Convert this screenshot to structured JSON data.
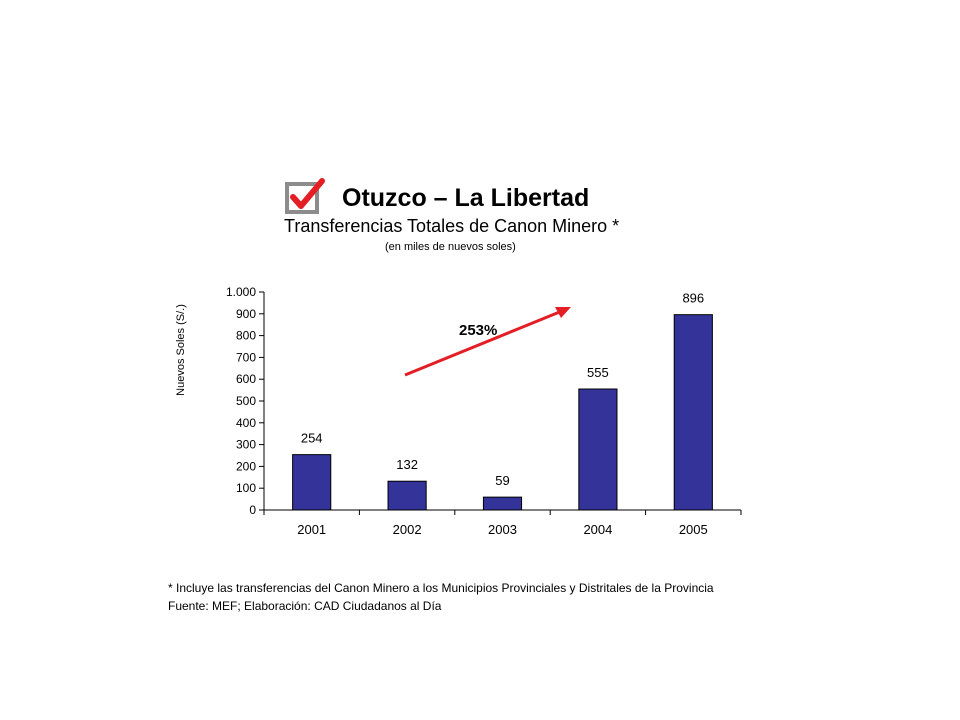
{
  "header": {
    "title": "Otuzco – La Libertad",
    "subtitle": "Transferencias Totales de Canon Minero *",
    "units": "(en miles de nuevos soles)"
  },
  "colors": {
    "bar": "#333399",
    "arrow": "#e31e24",
    "check": "#e31e24",
    "box": "#8c8c8c"
  },
  "chart_data": {
    "type": "bar",
    "categories": [
      "2001",
      "2002",
      "2003",
      "2004",
      "2005"
    ],
    "values": [
      254,
      132,
      59,
      555,
      896
    ],
    "data_labels": [
      "254",
      "132",
      "59",
      "555",
      "896"
    ],
    "ylabel": "Nuevos Soles (S/.)",
    "ylim": [
      0,
      1000
    ],
    "yticks": [
      0,
      100,
      200,
      300,
      400,
      500,
      600,
      700,
      800,
      900,
      1000
    ],
    "ytick_labels": [
      "0",
      "100",
      "200",
      "300",
      "400",
      "500",
      "600",
      "700",
      "800",
      "900",
      "1.000"
    ],
    "grid": false,
    "legend": "none",
    "annotation": "253%"
  },
  "footnotes": {
    "note": "* Incluye las transferencias del Canon Minero a los Municipios Provinciales y Distritales de la Provincia",
    "source": "Fuente: MEF; Elaboración: CAD Ciudadanos al Día"
  }
}
